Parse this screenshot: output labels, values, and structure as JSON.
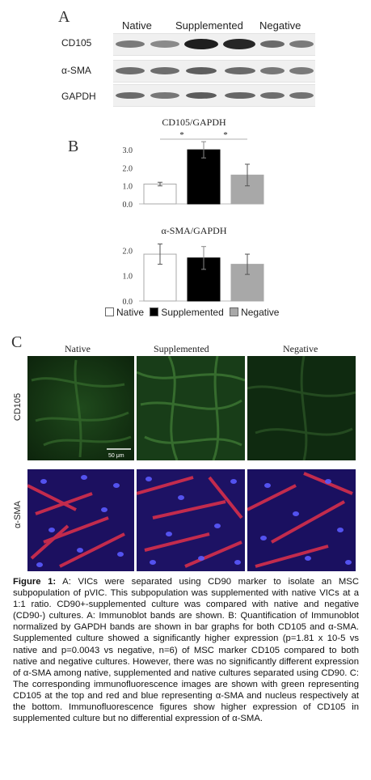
{
  "panel_a": {
    "letter": "A",
    "columns": [
      "Native",
      "Supplemented",
      "Negative"
    ],
    "rows": [
      "CD105",
      "α-SMA",
      "GAPDH"
    ]
  },
  "panel_b": {
    "letter": "B"
  },
  "chart_data": [
    {
      "type": "bar",
      "title": "CD105/GAPDH",
      "categories": [
        "Native",
        "Supplemented",
        "Negative"
      ],
      "values": [
        1.1,
        3.0,
        1.6
      ],
      "errors": [
        0.1,
        0.45,
        0.6
      ],
      "ylim": [
        0,
        3.5
      ],
      "yticks": [
        "0.0",
        "1.0",
        "2.0",
        "3.0"
      ],
      "significance": [
        "*",
        "*"
      ],
      "colors": [
        "#ffffff",
        "#000000",
        "#a8a8a8"
      ]
    },
    {
      "type": "bar",
      "title": "α-SMA/GAPDH",
      "categories": [
        "Native",
        "Supplemented",
        "Negative"
      ],
      "values": [
        1.85,
        1.7,
        1.45
      ],
      "errors": [
        0.4,
        0.45,
        0.4
      ],
      "ylim": [
        0,
        2.3
      ],
      "yticks": [
        "0.0",
        "1.0",
        "2.0"
      ],
      "colors": [
        "#ffffff",
        "#000000",
        "#a8a8a8"
      ],
      "legend": [
        "Native",
        "Supplemented",
        "Negative"
      ]
    }
  ],
  "panel_c": {
    "letter": "C",
    "columns": [
      "Native",
      "Supplemented",
      "Negative"
    ],
    "rows": [
      "CD105",
      "α-SMA"
    ],
    "scale_bar": "50 μm"
  },
  "caption": {
    "label": "Figure 1:",
    "text": " A: VICs were separated using CD90 marker to isolate an MSC subpopulation of pVIC. This subpopulation was supplemented with native VICs at a 1:1 ratio. CD90+-supplemented culture was compared with native and negative (CD90-) cultures. A: Immunoblot bands are shown. B: Quantification of Immunoblot normalized by GAPDH bands are shown in bar graphs for both CD105 and α-SMA. Supplemented culture showed a significantly higher expression (p=1.81 x 10-5 vs native and p=0.0043 vs negative, n=6) of MSC marker CD105 compared to both native and negative cultures. However, there was no significantly different expression of α-SMA among native, supplemented and native cultures separated using CD90. C: The corresponding immunofluorescence images are shown with green representing CD105 at the top and red and blue representing α-SMA and nucleus respectively at the bottom. Immunofluorescence figures show higher expression of CD105 in supplemented culture but no differential expression of α-SMA."
  }
}
